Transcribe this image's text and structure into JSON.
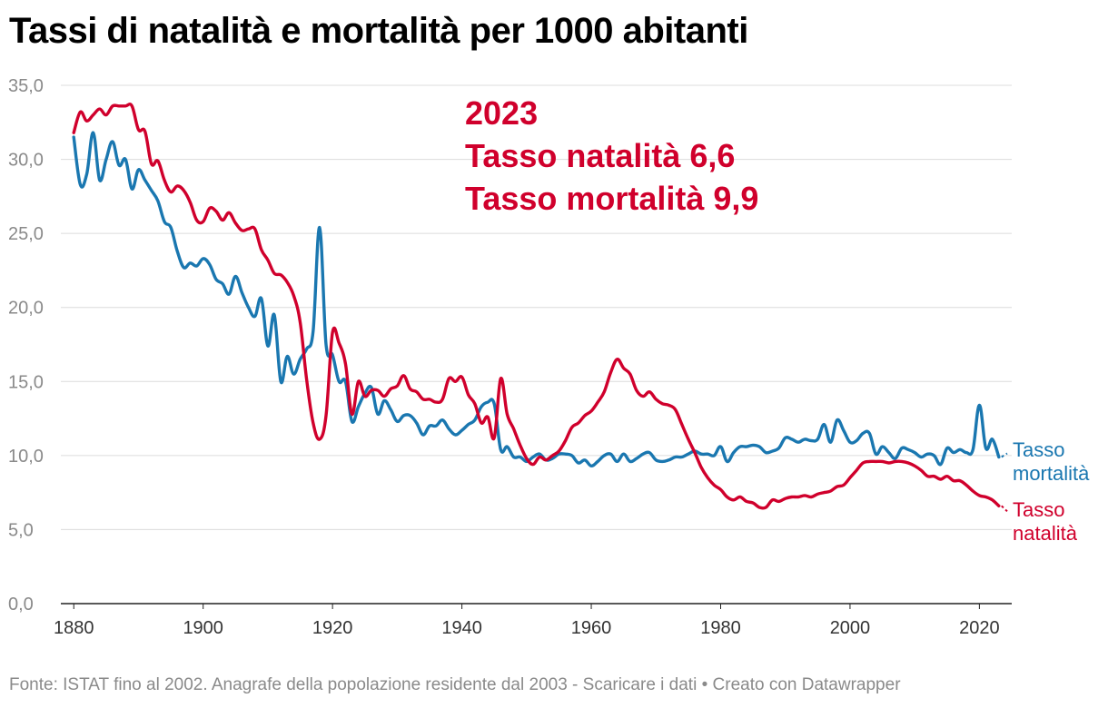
{
  "title": "Tassi di natalità e mortalità per 1000 abitanti",
  "footer": "Fonte: ISTAT fino al 2002. Anagrafe della popolazione residente dal 2003 - Scaricare i dati • Creato con Datawrapper",
  "chart_data": {
    "type": "line",
    "title": "Tassi di natalità e mortalità per 1000 abitanti",
    "xlim": [
      1878,
      2025
    ],
    "ylim": [
      0,
      35
    ],
    "x_ticks": [
      1880,
      1900,
      1920,
      1940,
      1960,
      1980,
      2000,
      2020
    ],
    "y_ticks": [
      0,
      5,
      10,
      15,
      20,
      25,
      30,
      35
    ],
    "y_tick_labels": [
      "0,0",
      "5,0",
      "10,0",
      "15,0",
      "20,0",
      "25,0",
      "30,0",
      "35,0"
    ],
    "annotation": [
      "2023",
      "Tasso natalità 6,6",
      "Tasso mortalità 9,9"
    ],
    "series": [
      {
        "name": "Tasso mortalità",
        "label_lines": [
          "Tasso",
          "mortalità"
        ],
        "color": "#1a77b0",
        "points": [
          [
            1880,
            31.5
          ],
          [
            1881,
            28.3
          ],
          [
            1882,
            29.0
          ],
          [
            1883,
            31.8
          ],
          [
            1884,
            28.6
          ],
          [
            1885,
            30.0
          ],
          [
            1886,
            31.2
          ],
          [
            1887,
            29.6
          ],
          [
            1888,
            30.0
          ],
          [
            1889,
            28.0
          ],
          [
            1890,
            29.3
          ],
          [
            1891,
            28.6
          ],
          [
            1892,
            27.9
          ],
          [
            1893,
            27.2
          ],
          [
            1894,
            25.8
          ],
          [
            1895,
            25.4
          ],
          [
            1896,
            23.8
          ],
          [
            1897,
            22.7
          ],
          [
            1898,
            23.0
          ],
          [
            1899,
            22.8
          ],
          [
            1900,
            23.3
          ],
          [
            1901,
            22.9
          ],
          [
            1902,
            21.9
          ],
          [
            1903,
            21.6
          ],
          [
            1904,
            20.9
          ],
          [
            1905,
            22.1
          ],
          [
            1906,
            21.0
          ],
          [
            1907,
            20.0
          ],
          [
            1908,
            19.4
          ],
          [
            1909,
            20.6
          ],
          [
            1910,
            17.4
          ],
          [
            1911,
            19.5
          ],
          [
            1912,
            15.0
          ],
          [
            1913,
            16.7
          ],
          [
            1914,
            15.5
          ],
          [
            1915,
            16.5
          ],
          [
            1916,
            17.2
          ],
          [
            1917,
            18.4
          ],
          [
            1918,
            25.4
          ],
          [
            1919,
            17.5
          ],
          [
            1920,
            16.8
          ],
          [
            1921,
            15.0
          ],
          [
            1922,
            15.0
          ],
          [
            1923,
            12.3
          ],
          [
            1924,
            13.3
          ],
          [
            1925,
            14.2
          ],
          [
            1926,
            14.6
          ],
          [
            1927,
            12.8
          ],
          [
            1928,
            13.7
          ],
          [
            1929,
            13.1
          ],
          [
            1930,
            12.3
          ],
          [
            1931,
            12.7
          ],
          [
            1932,
            12.7
          ],
          [
            1933,
            12.2
          ],
          [
            1934,
            11.4
          ],
          [
            1935,
            12.0
          ],
          [
            1936,
            12.0
          ],
          [
            1937,
            12.4
          ],
          [
            1938,
            11.8
          ],
          [
            1939,
            11.4
          ],
          [
            1940,
            11.7
          ],
          [
            1941,
            12.1
          ],
          [
            1942,
            12.4
          ],
          [
            1943,
            13.3
          ],
          [
            1944,
            13.6
          ],
          [
            1945,
            13.5
          ],
          [
            1946,
            10.4
          ],
          [
            1947,
            10.6
          ],
          [
            1948,
            9.9
          ],
          [
            1949,
            9.9
          ],
          [
            1950,
            9.6
          ],
          [
            1951,
            9.9
          ],
          [
            1952,
            10.1
          ],
          [
            1953,
            9.7
          ],
          [
            1954,
            9.8
          ],
          [
            1955,
            10.1
          ],
          [
            1956,
            10.1
          ],
          [
            1957,
            10.0
          ],
          [
            1958,
            9.5
          ],
          [
            1959,
            9.7
          ],
          [
            1960,
            9.3
          ],
          [
            1961,
            9.6
          ],
          [
            1962,
            10.0
          ],
          [
            1963,
            10.1
          ],
          [
            1964,
            9.6
          ],
          [
            1965,
            10.1
          ],
          [
            1966,
            9.6
          ],
          [
            1967,
            9.8
          ],
          [
            1968,
            10.1
          ],
          [
            1969,
            10.2
          ],
          [
            1970,
            9.7
          ],
          [
            1971,
            9.6
          ],
          [
            1972,
            9.7
          ],
          [
            1973,
            9.9
          ],
          [
            1974,
            9.9
          ],
          [
            1975,
            10.1
          ],
          [
            1976,
            10.3
          ],
          [
            1977,
            10.1
          ],
          [
            1978,
            10.1
          ],
          [
            1979,
            10.0
          ],
          [
            1980,
            10.6
          ],
          [
            1981,
            9.6
          ],
          [
            1982,
            10.2
          ],
          [
            1983,
            10.6
          ],
          [
            1984,
            10.6
          ],
          [
            1985,
            10.7
          ],
          [
            1986,
            10.6
          ],
          [
            1987,
            10.2
          ],
          [
            1988,
            10.3
          ],
          [
            1989,
            10.5
          ],
          [
            1990,
            11.2
          ],
          [
            1991,
            11.1
          ],
          [
            1992,
            10.9
          ],
          [
            1993,
            11.1
          ],
          [
            1994,
            11.0
          ],
          [
            1995,
            11.1
          ],
          [
            1996,
            12.1
          ],
          [
            1997,
            10.9
          ],
          [
            1998,
            12.4
          ],
          [
            1999,
            11.7
          ],
          [
            2000,
            10.9
          ],
          [
            2001,
            11.0
          ],
          [
            2002,
            11.5
          ],
          [
            2003,
            11.5
          ],
          [
            2004,
            10.1
          ],
          [
            2005,
            10.6
          ],
          [
            2006,
            10.2
          ],
          [
            2007,
            9.8
          ],
          [
            2008,
            10.5
          ],
          [
            2009,
            10.4
          ],
          [
            2010,
            10.2
          ],
          [
            2011,
            9.9
          ],
          [
            2012,
            10.1
          ],
          [
            2013,
            10.0
          ],
          [
            2014,
            9.4
          ],
          [
            2015,
            10.5
          ],
          [
            2016,
            10.2
          ],
          [
            2017,
            10.4
          ],
          [
            2018,
            10.2
          ],
          [
            2019,
            10.4
          ],
          [
            2020,
            13.4
          ],
          [
            2021,
            10.5
          ],
          [
            2022,
            11.1
          ],
          [
            2023,
            9.9
          ]
        ]
      },
      {
        "name": "Tasso natalità",
        "label_lines": [
          "Tasso",
          "natalità"
        ],
        "color": "#d0002c",
        "points": [
          [
            1880,
            31.8
          ],
          [
            1881,
            33.2
          ],
          [
            1882,
            32.6
          ],
          [
            1883,
            33.0
          ],
          [
            1884,
            33.4
          ],
          [
            1885,
            33.0
          ],
          [
            1886,
            33.6
          ],
          [
            1887,
            33.6
          ],
          [
            1888,
            33.6
          ],
          [
            1889,
            33.6
          ],
          [
            1890,
            32.0
          ],
          [
            1891,
            31.9
          ],
          [
            1892,
            29.7
          ],
          [
            1893,
            29.9
          ],
          [
            1894,
            28.6
          ],
          [
            1895,
            27.8
          ],
          [
            1896,
            28.2
          ],
          [
            1897,
            27.9
          ],
          [
            1898,
            27.1
          ],
          [
            1899,
            25.9
          ],
          [
            1900,
            25.8
          ],
          [
            1901,
            26.7
          ],
          [
            1902,
            26.5
          ],
          [
            1903,
            25.9
          ],
          [
            1904,
            26.4
          ],
          [
            1905,
            25.7
          ],
          [
            1906,
            25.2
          ],
          [
            1907,
            25.3
          ],
          [
            1908,
            25.3
          ],
          [
            1909,
            23.9
          ],
          [
            1910,
            23.2
          ],
          [
            1911,
            22.3
          ],
          [
            1912,
            22.2
          ],
          [
            1913,
            21.7
          ],
          [
            1914,
            20.8
          ],
          [
            1915,
            19.0
          ],
          [
            1916,
            15.1
          ],
          [
            1917,
            12.2
          ],
          [
            1918,
            11.1
          ],
          [
            1919,
            12.7
          ],
          [
            1920,
            18.3
          ],
          [
            1921,
            17.6
          ],
          [
            1922,
            16.2
          ],
          [
            1923,
            12.8
          ],
          [
            1924,
            15.0
          ],
          [
            1925,
            14.0
          ],
          [
            1926,
            14.4
          ],
          [
            1927,
            14.4
          ],
          [
            1928,
            14.0
          ],
          [
            1929,
            14.5
          ],
          [
            1930,
            14.7
          ],
          [
            1931,
            15.4
          ],
          [
            1932,
            14.5
          ],
          [
            1933,
            14.3
          ],
          [
            1934,
            13.8
          ],
          [
            1935,
            13.8
          ],
          [
            1936,
            13.6
          ],
          [
            1937,
            13.8
          ],
          [
            1938,
            15.2
          ],
          [
            1939,
            15.0
          ],
          [
            1940,
            15.3
          ],
          [
            1941,
            14.1
          ],
          [
            1942,
            13.5
          ],
          [
            1943,
            12.2
          ],
          [
            1944,
            12.6
          ],
          [
            1945,
            11.2
          ],
          [
            1946,
            15.2
          ],
          [
            1947,
            12.8
          ],
          [
            1948,
            11.8
          ],
          [
            1949,
            10.7
          ],
          [
            1950,
            9.8
          ],
          [
            1951,
            9.4
          ],
          [
            1952,
            9.9
          ],
          [
            1953,
            9.7
          ],
          [
            1954,
            10.0
          ],
          [
            1955,
            10.3
          ],
          [
            1956,
            11.0
          ],
          [
            1957,
            11.9
          ],
          [
            1958,
            12.2
          ],
          [
            1959,
            12.7
          ],
          [
            1960,
            13.0
          ],
          [
            1961,
            13.6
          ],
          [
            1962,
            14.3
          ],
          [
            1963,
            15.6
          ],
          [
            1964,
            16.5
          ],
          [
            1965,
            15.9
          ],
          [
            1966,
            15.5
          ],
          [
            1967,
            14.4
          ],
          [
            1968,
            14.0
          ],
          [
            1969,
            14.3
          ],
          [
            1970,
            13.8
          ],
          [
            1971,
            13.5
          ],
          [
            1972,
            13.4
          ],
          [
            1973,
            13.1
          ],
          [
            1974,
            12.1
          ],
          [
            1975,
            11.1
          ],
          [
            1976,
            10.2
          ],
          [
            1977,
            9.2
          ],
          [
            1978,
            8.5
          ],
          [
            1979,
            8.0
          ],
          [
            1980,
            7.7
          ],
          [
            1981,
            7.2
          ],
          [
            1982,
            7.0
          ],
          [
            1983,
            7.2
          ],
          [
            1984,
            6.9
          ],
          [
            1985,
            6.8
          ],
          [
            1986,
            6.5
          ],
          [
            1987,
            6.5
          ],
          [
            1988,
            7.0
          ],
          [
            1989,
            6.9
          ],
          [
            1990,
            7.1
          ],
          [
            1991,
            7.2
          ],
          [
            1992,
            7.2
          ],
          [
            1993,
            7.3
          ],
          [
            1994,
            7.2
          ],
          [
            1995,
            7.4
          ],
          [
            1996,
            7.5
          ],
          [
            1997,
            7.6
          ],
          [
            1998,
            7.9
          ],
          [
            1999,
            8.0
          ],
          [
            2000,
            8.5
          ],
          [
            2001,
            9.0
          ],
          [
            2002,
            9.5
          ],
          [
            2003,
            9.6
          ],
          [
            2004,
            9.6
          ],
          [
            2005,
            9.6
          ],
          [
            2006,
            9.5
          ],
          [
            2007,
            9.6
          ],
          [
            2008,
            9.6
          ],
          [
            2009,
            9.5
          ],
          [
            2010,
            9.3
          ],
          [
            2011,
            9.0
          ],
          [
            2012,
            8.6
          ],
          [
            2013,
            8.6
          ],
          [
            2014,
            8.4
          ],
          [
            2015,
            8.6
          ],
          [
            2016,
            8.3
          ],
          [
            2017,
            8.3
          ],
          [
            2018,
            8.0
          ],
          [
            2019,
            7.6
          ],
          [
            2020,
            7.3
          ],
          [
            2021,
            7.2
          ],
          [
            2022,
            7.0
          ],
          [
            2023,
            6.6
          ]
        ]
      }
    ]
  }
}
